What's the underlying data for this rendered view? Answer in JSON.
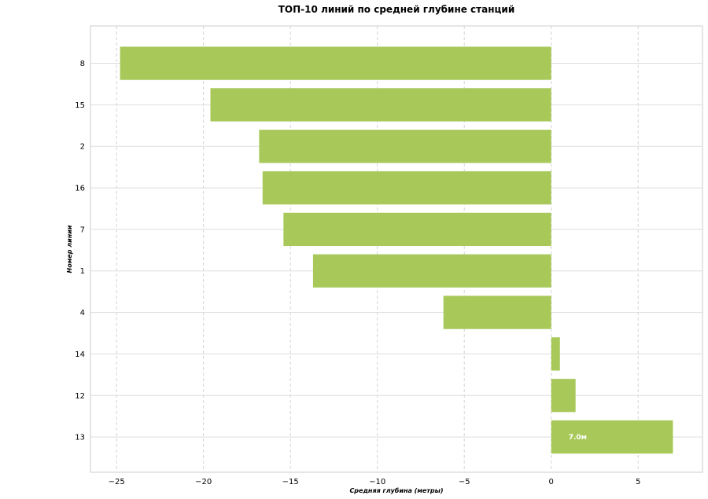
{
  "chart_data": {
    "type": "bar",
    "orientation": "horizontal",
    "title": "ТОП-10 линий по средней глубине станций",
    "xlabel": "Средняя глубина (метры)",
    "ylabel": "Номер линии",
    "categories": [
      "8",
      "15",
      "2",
      "16",
      "7",
      "1",
      "4",
      "14",
      "12",
      "13"
    ],
    "values": [
      -24.8,
      -19.6,
      -16.8,
      -16.6,
      -15.4,
      -13.7,
      -6.2,
      0.5,
      1.4,
      7.0
    ],
    "value_labels": [
      "",
      "",
      "",
      "",
      "",
      "",
      "",
      "",
      "",
      "7.0м"
    ],
    "xlim": [
      -26.5,
      8.7
    ],
    "xticks": [
      -25,
      -20,
      -15,
      -10,
      -5,
      0,
      5
    ],
    "xtick_labels": [
      "−25",
      "−20",
      "−15",
      "−10",
      "−5",
      "0",
      "5"
    ],
    "grid": true,
    "bar_color": "#a8c95a"
  }
}
